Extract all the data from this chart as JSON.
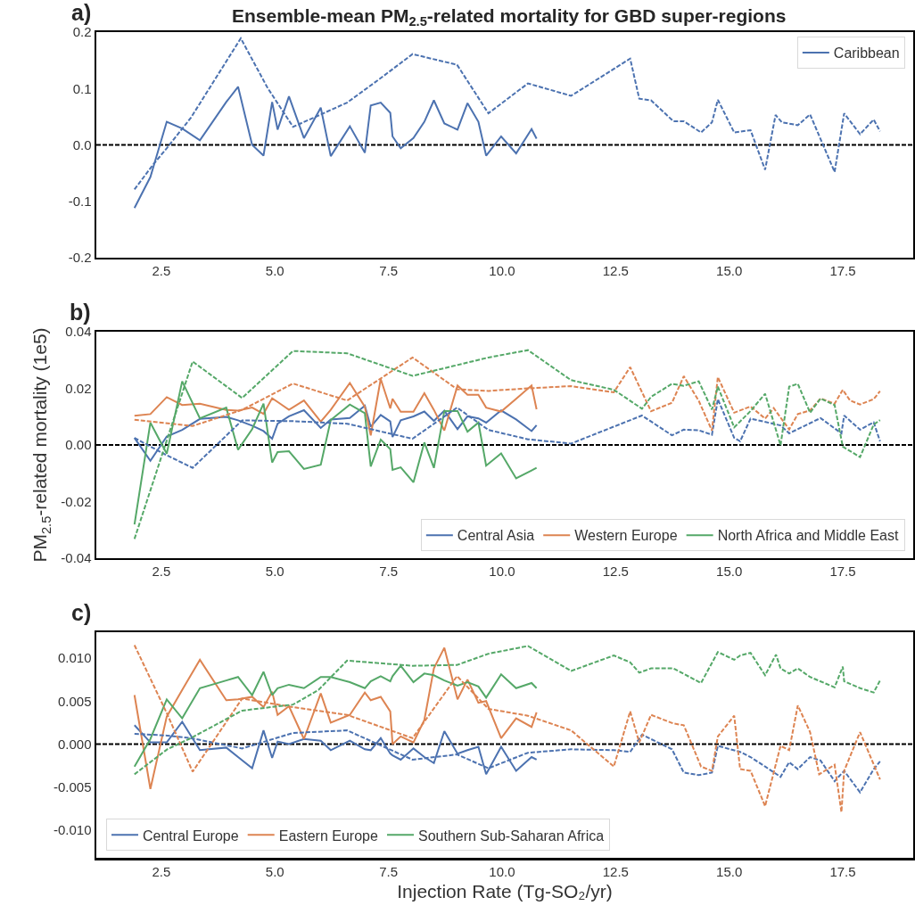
{
  "chart_data": [
    {
      "type": "line",
      "title": "Ensemble-mean PM$_{2.5}$-related mortality for GBD super-regions",
      "annotations": [
        "a)"
      ],
      "legend": "top right",
      "xlim": [
        1.07,
        19.05
      ],
      "xticks": [
        2.5,
        {
          "value": 5,
          "label": "5.0"
        },
        7.5,
        {
          "value": 10,
          "label": "10.0"
        },
        12.5,
        {
          "value": 15,
          "label": "15.0"
        },
        17.5
      ],
      "ylim": [
        -0.2,
        0.2
      ],
      "yticks": [
        -0.2,
        -0.1,
        {
          "value": 0,
          "label": "0.0"
        },
        0.1,
        0.2
      ],
      "ref_lines": [
        {
          "axis": "y",
          "value": 0,
          "color": "#000000",
          "line_style": "dashed"
        }
      ],
      "series": [
        {
          "name": "Caribbean",
          "color": "#4c72b0",
          "line_style": "solid",
          "x": [
            1.91,
            2.26,
            2.62,
            2.96,
            3.35,
            3.93,
            4.19,
            4.5,
            4.75,
            4.94,
            5.06,
            5.31,
            5.64,
            6.01,
            6.23,
            6.65,
            6.98,
            7.11,
            7.33,
            7.54,
            7.59,
            7.77,
            8.05,
            8.29,
            8.5,
            8.73,
            9.02,
            9.24,
            9.48,
            9.65,
            9.98,
            10.31,
            10.65,
            10.76
          ],
          "values": [
            -0.112,
            -0.057,
            0.041,
            0.029,
            0.008,
            0.076,
            0.103,
            0.0,
            -0.019,
            0.076,
            0.027,
            0.086,
            0.012,
            0.066,
            -0.02,
            0.033,
            -0.014,
            0.07,
            0.075,
            0.057,
            0.015,
            -0.006,
            0.012,
            0.041,
            0.079,
            0.038,
            0.027,
            0.074,
            0.041,
            -0.019,
            0.015,
            -0.015,
            0.028,
            0.011
          ]
        },
        {
          "color": "#4c72b0",
          "line_style": "dashed",
          "x": [
            1.91,
            2.31,
            2.63,
            3.15,
            4.25,
            4.84,
            5.4,
            5.96,
            6.59,
            7.29,
            8.03,
            9.01,
            9.7,
            10.57,
            11.52,
            12.82,
            13.02,
            13.28,
            13.77,
            14.0,
            14.38,
            14.62,
            14.75,
            15.11,
            15.47,
            15.79,
            16.02,
            16.16,
            16.51,
            16.78,
            17.32,
            17.53,
            17.88,
            18.18,
            18.32
          ],
          "values": [
            -0.079,
            -0.036,
            -0.005,
            0.048,
            0.189,
            0.101,
            0.032,
            0.052,
            0.075,
            0.116,
            0.161,
            0.142,
            0.056,
            0.109,
            0.087,
            0.153,
            0.082,
            0.079,
            0.042,
            0.042,
            0.022,
            0.04,
            0.08,
            0.022,
            0.026,
            -0.044,
            0.053,
            0.04,
            0.035,
            0.054,
            -0.048,
            0.056,
            0.019,
            0.045,
            0.024
          ]
        }
      ]
    },
    {
      "type": "line",
      "ylabel": "PM$_{2.5}$-related mortality (1e5)",
      "annotations": [
        "b)"
      ],
      "legend": "bottom right",
      "xlim": [
        1.07,
        19.05
      ],
      "xticks": [
        2.5,
        {
          "value": 5,
          "label": "5.0"
        },
        7.5,
        {
          "value": 10,
          "label": "10.0"
        },
        12.5,
        {
          "value": 15,
          "label": "15.0"
        },
        17.5
      ],
      "ylim": [
        -0.04,
        0.04
      ],
      "yticks": [
        -0.04,
        -0.02,
        {
          "value": 0,
          "label": "0.00"
        },
        0.02,
        0.04
      ],
      "ref_lines": [
        {
          "axis": "y",
          "value": 0,
          "color": "#000000",
          "line_style": "dashed"
        }
      ],
      "series": [
        {
          "name": "Central Asia",
          "color": "#4c72b0",
          "line_style": "solid",
          "x": [
            1.91,
            2.26,
            2.62,
            2.96,
            3.35,
            3.93,
            4.19,
            4.5,
            4.75,
            4.94,
            5.06,
            5.31,
            5.64,
            6.01,
            6.23,
            6.65,
            6.98,
            7.11,
            7.33,
            7.54,
            7.59,
            7.77,
            8.05,
            8.29,
            8.5,
            8.73,
            9.02,
            9.24,
            9.48,
            9.65,
            9.98,
            10.31,
            10.65,
            10.76
          ],
          "values": [
            0.0025,
            -0.0056,
            0.003,
            0.0053,
            0.0092,
            0.0099,
            0.0087,
            0.0068,
            0.0049,
            0.0022,
            0.0075,
            0.0101,
            0.0123,
            0.006,
            0.009,
            0.0095,
            0.0139,
            0.0064,
            0.0106,
            0.0083,
            0.0028,
            0.0087,
            0.0101,
            0.0118,
            0.0085,
            0.0121,
            0.0056,
            0.0101,
            0.0094,
            0.0079,
            0.0122,
            0.009,
            0.0049,
            0.007
          ]
        },
        {
          "name": "Western Europe",
          "color": "#dd8452",
          "line_style": "solid",
          "x": [
            1.91,
            2.26,
            2.62,
            2.96,
            3.35,
            3.93,
            4.19,
            4.5,
            4.75,
            4.94,
            5.06,
            5.31,
            5.64,
            6.01,
            6.23,
            6.65,
            6.98,
            7.11,
            7.33,
            7.54,
            7.59,
            7.77,
            8.05,
            8.29,
            8.5,
            8.73,
            9.02,
            9.24,
            9.48,
            9.65,
            9.98,
            10.31,
            10.65,
            10.76
          ],
          "values": [
            0.0103,
            0.0109,
            0.0169,
            0.0141,
            0.0146,
            0.0124,
            0.0121,
            0.0132,
            0.011,
            0.0165,
            0.0152,
            0.0124,
            0.0157,
            0.0082,
            0.0124,
            0.0219,
            0.0135,
            0.0034,
            0.0233,
            0.0129,
            0.0163,
            0.0117,
            0.0117,
            0.0183,
            0.0124,
            0.0051,
            0.021,
            0.0177,
            0.0177,
            0.0132,
            0.0118,
            0.0163,
            0.021,
            0.0126
          ]
        },
        {
          "name": "North Africa and Middle East",
          "color": "#55a868",
          "line_style": "solid",
          "x": [
            1.91,
            2.26,
            2.62,
            2.96,
            3.35,
            3.93,
            4.19,
            4.5,
            4.75,
            4.94,
            5.06,
            5.31,
            5.64,
            6.01,
            6.23,
            6.65,
            6.98,
            7.11,
            7.33,
            7.54,
            7.59,
            7.77,
            8.05,
            8.29,
            8.5,
            8.73,
            9.02,
            9.24,
            9.48,
            9.65,
            9.98,
            10.31,
            10.65,
            10.76
          ],
          "values": [
            -0.0281,
            0.0079,
            -0.0031,
            0.0225,
            0.0094,
            0.0132,
            -0.0017,
            0.0056,
            0.0146,
            -0.0062,
            -0.0025,
            -0.0022,
            -0.0085,
            -0.007,
            0.0088,
            0.0143,
            0.0112,
            -0.0076,
            0.0019,
            -0.0015,
            -0.0088,
            -0.0079,
            -0.0132,
            0.0009,
            -0.0081,
            0.012,
            0.012,
            0.0047,
            0.0079,
            -0.0073,
            -0.003,
            -0.0118,
            -0.009,
            -0.0081
          ]
        },
        {
          "color": "#4c72b0",
          "line_style": "dashed",
          "x": [
            1.91,
            2.59,
            3.19,
            4.28,
            5.4,
            6.59,
            8.03,
            9.01,
            9.7,
            10.57,
            11.52,
            13.08,
            13.74,
            14.0,
            14.33,
            14.62,
            14.75,
            15.11,
            15.24,
            15.47,
            16.13,
            16.32,
            17.01,
            17.47,
            17.53,
            17.88,
            18.18,
            18.32
          ],
          "values": [
            0.0025,
            -0.0034,
            -0.0081,
            0.0087,
            0.0084,
            0.0075,
            0.0022,
            0.0132,
            0.0053,
            0.002,
            0.0005,
            0.0104,
            0.0034,
            0.0054,
            0.0052,
            0.0036,
            0.0162,
            0.0025,
            0.0013,
            0.0093,
            0.0069,
            0.0041,
            0.0095,
            0.0041,
            0.0104,
            0.0054,
            0.008,
            0.0013
          ]
        },
        {
          "color": "#dd8452",
          "line_style": "dashed",
          "x": [
            1.91,
            3.19,
            4.28,
            5.4,
            6.59,
            8.03,
            9.01,
            9.7,
            10.57,
            11.52,
            12.46,
            12.82,
            13.28,
            13.74,
            14.0,
            14.33,
            14.62,
            14.75,
            15.11,
            15.47,
            15.79,
            15.98,
            16.32,
            16.51,
            16.78,
            17.01,
            17.32,
            17.5,
            17.66,
            17.88,
            18.18,
            18.32
          ],
          "values": [
            0.0089,
            0.0067,
            0.0124,
            0.0217,
            0.0157,
            0.0309,
            0.0197,
            0.0191,
            0.02,
            0.0208,
            0.0186,
            0.0275,
            0.0119,
            0.0149,
            0.0243,
            0.0156,
            0.0051,
            0.024,
            0.0114,
            0.0136,
            0.0093,
            0.013,
            0.0055,
            0.0109,
            0.0122,
            0.0164,
            0.0146,
            0.0195,
            0.0157,
            0.0143,
            0.0162,
            0.019
          ]
        },
        {
          "color": "#55a868",
          "line_style": "dashed",
          "x": [
            1.91,
            3.19,
            4.28,
            5.4,
            6.59,
            8.03,
            9.7,
            10.57,
            11.52,
            12.46,
            13.08,
            13.28,
            13.74,
            14.0,
            14.33,
            14.62,
            14.75,
            15.11,
            15.47,
            15.79,
            16.13,
            16.32,
            16.51,
            16.78,
            17.01,
            17.32,
            17.5,
            17.88,
            18.18,
            18.32
          ],
          "values": [
            -0.0332,
            0.0295,
            0.0166,
            0.0332,
            0.0324,
            0.0244,
            0.0309,
            0.0335,
            0.0229,
            0.0195,
            0.0128,
            0.017,
            0.0216,
            0.0209,
            0.0225,
            0.0125,
            0.0206,
            0.0062,
            0.012,
            0.0181,
            -0.0001,
            0.0206,
            0.0216,
            0.0114,
            0.0164,
            0.0141,
            -0.0006,
            -0.0043,
            0.0072,
            0.0088
          ]
        }
      ]
    },
    {
      "type": "line",
      "xlabel": "Injection Rate (Tg-SO₂/yr)",
      "annotations": [
        "c)"
      ],
      "legend": "bottom left",
      "xlim": [
        1.07,
        19.05
      ],
      "xticks": [
        2.5,
        {
          "value": 5,
          "label": "5.0"
        },
        7.5,
        {
          "value": 10,
          "label": "10.0"
        },
        12.5,
        {
          "value": 15,
          "label": "15.0"
        },
        17.5
      ],
      "ylim": [
        -0.0132,
        0.013
      ],
      "yticks": [
        {
          "value": -0.01,
          "label": "-0.010"
        },
        -0.005,
        {
          "value": 0,
          "label": "0.000"
        },
        0.005,
        {
          "value": 0.01,
          "label": "0.010"
        }
      ],
      "ref_lines": [
        {
          "axis": "y",
          "value": 0,
          "color": "#000000",
          "line_style": "dashed"
        }
      ],
      "series": [
        {
          "name": "Central Europe",
          "color": "#4c72b0",
          "line_style": "solid",
          "x": [
            1.91,
            2.26,
            2.62,
            2.96,
            3.35,
            3.93,
            4.19,
            4.5,
            4.75,
            4.94,
            5.06,
            5.31,
            5.64,
            6.01,
            6.23,
            6.65,
            6.98,
            7.11,
            7.33,
            7.54,
            7.59,
            7.77,
            8.05,
            8.29,
            8.5,
            8.73,
            9.02,
            9.24,
            9.48,
            9.65,
            9.98,
            10.31,
            10.65,
            10.76
          ],
          "values": [
            0.0022,
            0.0002,
            0.0002,
            0.0026,
            -0.0007,
            -0.0004,
            -0.0015,
            -0.0028,
            0.0016,
            -0.0016,
            0.0003,
            0.0,
            0.0006,
            0.0004,
            -0.0007,
            0.0004,
            -0.0006,
            -0.0007,
            0.0007,
            -0.0011,
            -0.0013,
            -0.0018,
            -0.0005,
            -0.0015,
            -0.0022,
            0.0015,
            -0.0011,
            -0.0007,
            -0.0003,
            -0.0035,
            -0.0003,
            -0.0031,
            -0.0015,
            -0.0018
          ]
        },
        {
          "name": "Eastern Europe",
          "color": "#dd8452",
          "line_style": "solid",
          "x": [
            1.91,
            2.26,
            2.62,
            2.96,
            3.35,
            3.93,
            4.19,
            4.5,
            4.75,
            4.94,
            5.06,
            5.31,
            5.64,
            6.01,
            6.23,
            6.65,
            6.98,
            7.11,
            7.33,
            7.54,
            7.59,
            7.77,
            8.05,
            8.29,
            8.5,
            8.73,
            9.02,
            9.24,
            9.48,
            9.65,
            9.98,
            10.31,
            10.65,
            10.76
          ],
          "values": [
            0.0057,
            -0.0052,
            0.0032,
            0.0063,
            0.0098,
            0.0051,
            0.0052,
            0.0055,
            0.0043,
            0.0061,
            0.0034,
            0.0044,
            0.0006,
            0.0059,
            0.0025,
            0.0034,
            0.006,
            0.0051,
            0.0055,
            0.0038,
            0.0,
            0.0009,
            0.0002,
            0.0028,
            0.0088,
            0.0112,
            0.0052,
            0.0075,
            0.0048,
            0.005,
            0.0007,
            0.003,
            0.002,
            0.0037
          ]
        },
        {
          "name": "Southern Sub-Saharan Africa",
          "color": "#55a868",
          "line_style": "solid",
          "x": [
            1.91,
            2.26,
            2.62,
            2.96,
            3.35,
            3.93,
            4.19,
            4.5,
            4.75,
            4.94,
            5.06,
            5.31,
            5.64,
            6.01,
            6.23,
            6.65,
            6.98,
            7.11,
            7.33,
            7.54,
            7.59,
            7.77,
            8.05,
            8.29,
            8.5,
            8.73,
            9.02,
            9.24,
            9.48,
            9.65,
            9.98,
            10.31,
            10.65,
            10.76
          ],
          "values": [
            -0.0026,
            0.0006,
            0.0052,
            0.003,
            0.0065,
            0.0074,
            0.0078,
            0.0057,
            0.0084,
            0.0057,
            0.0065,
            0.0069,
            0.0065,
            0.0078,
            0.0078,
            0.0072,
            0.0065,
            0.0073,
            0.0079,
            0.0073,
            0.0079,
            0.0091,
            0.0072,
            0.0082,
            0.008,
            0.0074,
            0.0068,
            0.0072,
            0.0067,
            0.0054,
            0.0081,
            0.0065,
            0.0071,
            0.0065
          ]
        },
        {
          "color": "#4c72b0",
          "line_style": "dashed",
          "x": [
            1.91,
            2.63,
            3.15,
            4.28,
            5.4,
            6.59,
            8.03,
            9.01,
            9.7,
            10.57,
            11.52,
            12.46,
            12.82,
            13.08,
            13.74,
            14.0,
            14.33,
            14.62,
            14.75,
            15.24,
            15.47,
            15.79,
            16.13,
            16.32,
            16.51,
            16.78,
            17.01,
            17.32,
            17.53,
            17.88,
            18.18,
            18.32
          ],
          "values": [
            0.0012,
            0.001,
            0.0007,
            -0.0005,
            0.0013,
            0.0016,
            -0.0018,
            -0.0012,
            -0.0028,
            -0.001,
            -0.0006,
            -0.0007,
            -0.0009,
            0.0011,
            -0.0006,
            -0.0033,
            -0.0036,
            -0.0033,
            -0.0002,
            -0.0009,
            -0.0015,
            -0.0026,
            -0.0038,
            -0.0021,
            -0.0029,
            -0.0015,
            -0.0019,
            -0.0043,
            -0.0031,
            -0.0056,
            -0.0029,
            -0.002
          ]
        },
        {
          "color": "#dd8452",
          "line_style": "dashed",
          "x": [
            1.91,
            2.63,
            3.19,
            4.28,
            5.4,
            6.59,
            8.03,
            9.01,
            9.7,
            10.57,
            11.52,
            12.46,
            12.82,
            13.02,
            13.28,
            13.77,
            14.0,
            14.38,
            14.62,
            14.75,
            15.11,
            15.24,
            15.47,
            15.79,
            16.13,
            16.32,
            16.51,
            16.78,
            16.98,
            17.32,
            17.47,
            17.53,
            17.88,
            18.32
          ],
          "values": [
            0.0115,
            0.0035,
            -0.0032,
            0.0053,
            0.0043,
            0.0034,
            0.0007,
            0.0079,
            0.0041,
            0.0033,
            0.0016,
            -0.0026,
            0.0038,
            0.0002,
            0.0034,
            0.0024,
            0.0022,
            -0.0026,
            -0.0031,
            0.0009,
            0.0033,
            -0.0029,
            -0.0031,
            -0.0072,
            -0.0002,
            -0.0007,
            0.0045,
            0.0014,
            -0.0035,
            -0.0024,
            -0.0079,
            -0.0031,
            0.0014,
            -0.0041
          ]
        },
        {
          "color": "#55a868",
          "line_style": "dashed",
          "x": [
            1.91,
            2.63,
            3.15,
            4.28,
            5.4,
            5.96,
            6.59,
            8.03,
            9.01,
            9.7,
            10.57,
            11.52,
            12.46,
            12.82,
            13.02,
            13.28,
            13.77,
            14.38,
            14.75,
            15.11,
            15.24,
            15.47,
            15.79,
            16.03,
            16.13,
            16.32,
            16.51,
            16.78,
            17.32,
            17.5,
            17.53,
            17.88,
            18.18,
            18.32
          ],
          "values": [
            -0.0035,
            -0.0006,
            0.0007,
            0.0039,
            0.0046,
            0.0063,
            0.0097,
            0.0091,
            0.0092,
            0.0105,
            0.0114,
            0.0085,
            0.0103,
            0.0095,
            0.0083,
            0.0088,
            0.0088,
            0.0071,
            0.0107,
            0.0098,
            0.0103,
            0.0106,
            0.008,
            0.0104,
            0.0088,
            0.0082,
            0.0088,
            0.0078,
            0.0066,
            0.009,
            0.0073,
            0.0065,
            0.006,
            0.0074
          ]
        }
      ]
    }
  ]
}
